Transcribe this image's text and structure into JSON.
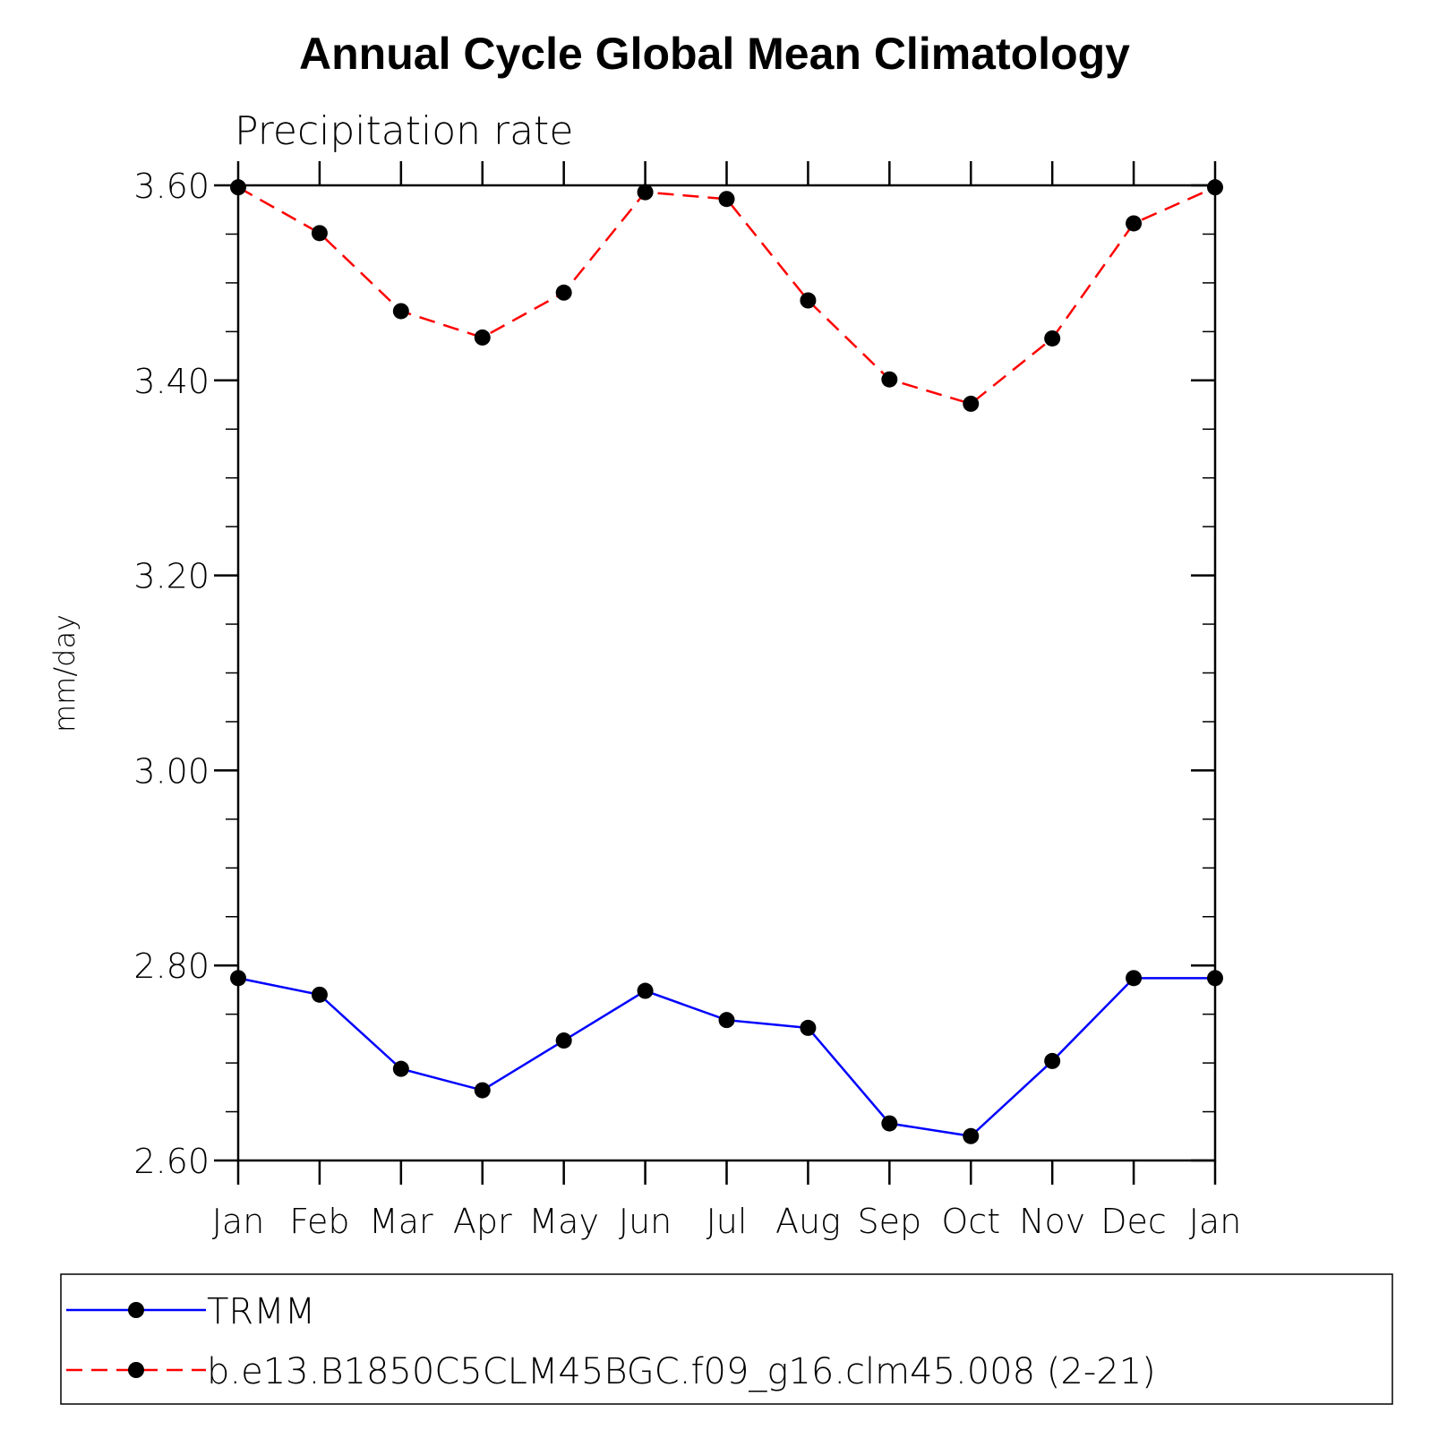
{
  "chart_data": {
    "type": "line",
    "title": "Annual Cycle Global Mean Climatology",
    "subtitle": "Precipitation rate",
    "xlabel": "",
    "ylabel": "mm/day",
    "categories": [
      "Jan",
      "Feb",
      "Mar",
      "Apr",
      "May",
      "Jun",
      "Jul",
      "Aug",
      "Sep",
      "Oct",
      "Nov",
      "Dec",
      "Jan"
    ],
    "ylim": [
      2.6,
      3.6
    ],
    "yticks": [
      "2.60",
      "2.80",
      "3.00",
      "3.20",
      "3.40",
      "3.60"
    ],
    "yticks_values": [
      2.6,
      2.8,
      3.0,
      3.2,
      3.4,
      3.6
    ],
    "legend_position": "bottom",
    "series": [
      {
        "name": "TRMM",
        "color": "#0000ff",
        "dash": "solid",
        "values": [
          2.787,
          2.77,
          2.694,
          2.672,
          2.723,
          2.774,
          2.744,
          2.736,
          2.638,
          2.625,
          2.702,
          2.787,
          2.787
        ]
      },
      {
        "name": "b.e13.B1850C5CLM45BGC.f09_g16.clm45.008 (2-21)",
        "color": "#ff0000",
        "dash": "dashed",
        "values": [
          3.598,
          3.551,
          3.471,
          3.444,
          3.49,
          3.593,
          3.586,
          3.482,
          3.401,
          3.376,
          3.443,
          3.561,
          3.598
        ]
      }
    ]
  }
}
